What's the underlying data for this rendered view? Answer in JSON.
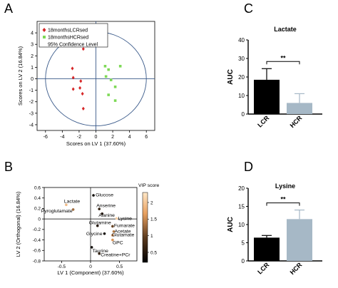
{
  "panels": {
    "A": "A",
    "B": "B",
    "C": "C",
    "D": "D"
  },
  "chart_data": [
    {
      "panel": "A",
      "type": "scatter",
      "xlabel": "Scores on LV 1 (37.60%)",
      "ylabel": "Scores on LV 2 (16.84%)",
      "xlim": [
        -7,
        7
      ],
      "ylim": [
        -4.5,
        5
      ],
      "xticks": [
        "-6",
        "-4",
        "-2",
        "0",
        "2",
        "4",
        "6"
      ],
      "yticks": [
        "-4",
        "-3",
        "-2",
        "-1",
        "0",
        "1",
        "2",
        "3",
        "4"
      ],
      "xtick_values": [
        -6,
        -4,
        -2,
        0,
        2,
        4,
        6
      ],
      "ytick_values": [
        -4,
        -3,
        -2,
        -1,
        0,
        1,
        2,
        3,
        4
      ],
      "legend": [
        {
          "label": "18monthsLCRsed",
          "color": "#d62728",
          "marker": "diamond"
        },
        {
          "label": "18monthsHCRsed",
          "color": "#7ed957",
          "marker": "square"
        },
        {
          "label": "95% Confidence Level",
          "color": "",
          "marker": "none"
        }
      ],
      "series": [
        {
          "name": "18monthsLCRsed",
          "color": "#d62728",
          "points": [
            [
              -1.5,
              2.6
            ],
            [
              -2.8,
              0.9
            ],
            [
              -2.7,
              0.1
            ],
            [
              -1.8,
              -0.2
            ],
            [
              -2.7,
              -0.9
            ],
            [
              -1.9,
              -0.8
            ],
            [
              -1.6,
              -1.3
            ],
            [
              -1.5,
              -2.6
            ]
          ]
        },
        {
          "name": "18monthsHCRsed",
          "color": "#7ed957",
          "points": [
            [
              1.1,
              1.1
            ],
            [
              2.9,
              1.1
            ],
            [
              1.5,
              0.8
            ],
            [
              1.2,
              0.2
            ],
            [
              1.8,
              -0.1
            ],
            [
              2.3,
              -0.7
            ],
            [
              1.5,
              -1.4
            ],
            [
              2.3,
              -1.9
            ]
          ]
        }
      ],
      "ellipse": {
        "center": [
          0,
          0
        ],
        "rx": 6.0,
        "ry": 4.1
      }
    },
    {
      "panel": "B",
      "type": "scatter",
      "xlabel": "LV 1 (Component) (37.60%)",
      "ylabel": "LV 2 (Orthogonal) (16.84%)",
      "xlim": [
        -0.8,
        0.8
      ],
      "ylim": [
        -0.8,
        0.6
      ],
      "xticks": [
        "-0.5",
        "0",
        "0.5"
      ],
      "yticks": [
        "-0.8",
        "-0.6",
        "-0.4",
        "-0.2",
        "0",
        "0.2",
        "0.4",
        "0.6"
      ],
      "xtick_values": [
        -0.5,
        0,
        0.5
      ],
      "ytick_values": [
        -0.8,
        -0.6,
        -0.4,
        -0.2,
        0,
        0.2,
        0.4,
        0.6
      ],
      "colorbar": {
        "title": "VIP score",
        "ticks": [
          "2",
          "1.5",
          "1",
          "0.5"
        ],
        "tick_values": [
          2,
          1.5,
          1,
          0.5
        ],
        "min": 0.2,
        "max": 2.3
      },
      "points": [
        {
          "label": "Glucose",
          "x": 0.05,
          "y": 0.45,
          "vip": 0.3
        },
        {
          "label": "Lactate",
          "x": -0.42,
          "y": 0.27,
          "vip": 1.9
        },
        {
          "label": "Anserine",
          "x": 0.15,
          "y": 0.19,
          "vip": 0.6
        },
        {
          "label": "Pyroglutamate",
          "x": -0.3,
          "y": 0.18,
          "vip": 1.3
        },
        {
          "label": "Alanine",
          "x": 0.2,
          "y": 0.1,
          "vip": 0.5
        },
        {
          "label": "Lysine",
          "x": 0.45,
          "y": 0.01,
          "vip": 2.1
        },
        {
          "label": "Glutamine",
          "x": 0.12,
          "y": -0.13,
          "vip": 0.5
        },
        {
          "label": "Fumarate",
          "x": 0.38,
          "y": -0.14,
          "vip": 1.0
        },
        {
          "label": "Acetate",
          "x": 0.4,
          "y": -0.24,
          "vip": 1.4
        },
        {
          "label": "Glycine",
          "x": 0.24,
          "y": -0.28,
          "vip": 0.3
        },
        {
          "label": "Glutamate",
          "x": 0.38,
          "y": -0.31,
          "vip": 1.5
        },
        {
          "label": "GPC",
          "x": 0.38,
          "y": -0.4,
          "vip": 1.6
        },
        {
          "label": "Taurine",
          "x": 0.02,
          "y": -0.54,
          "vip": 0.3
        },
        {
          "label": "Creatine+PCr",
          "x": 0.15,
          "y": -0.66,
          "vip": 0.6
        }
      ]
    },
    {
      "panel": "C",
      "type": "bar",
      "title": "Lactate",
      "ylabel": "AUC",
      "categories": [
        "LCR",
        "HCR"
      ],
      "values": [
        18.5,
        6.0
      ],
      "errors": [
        6.0,
        5.0
      ],
      "colors": [
        "#000000",
        "#a6b8c6"
      ],
      "ylim": [
        0,
        40
      ],
      "yticks": [
        "0",
        "10",
        "20",
        "30",
        "40"
      ],
      "ytick_values": [
        0,
        10,
        20,
        30,
        40
      ],
      "significance": "**"
    },
    {
      "panel": "D",
      "type": "bar",
      "title": "Lysine",
      "ylabel": "AUC",
      "categories": [
        "LCR",
        "HCR"
      ],
      "values": [
        6.4,
        11.5
      ],
      "errors": [
        0.6,
        2.5
      ],
      "colors": [
        "#000000",
        "#a6b8c6"
      ],
      "ylim": [
        0,
        20
      ],
      "yticks": [
        "0",
        "5",
        "10",
        "15",
        "20"
      ],
      "ytick_values": [
        0,
        5,
        10,
        15,
        20
      ],
      "significance": "**"
    }
  ]
}
